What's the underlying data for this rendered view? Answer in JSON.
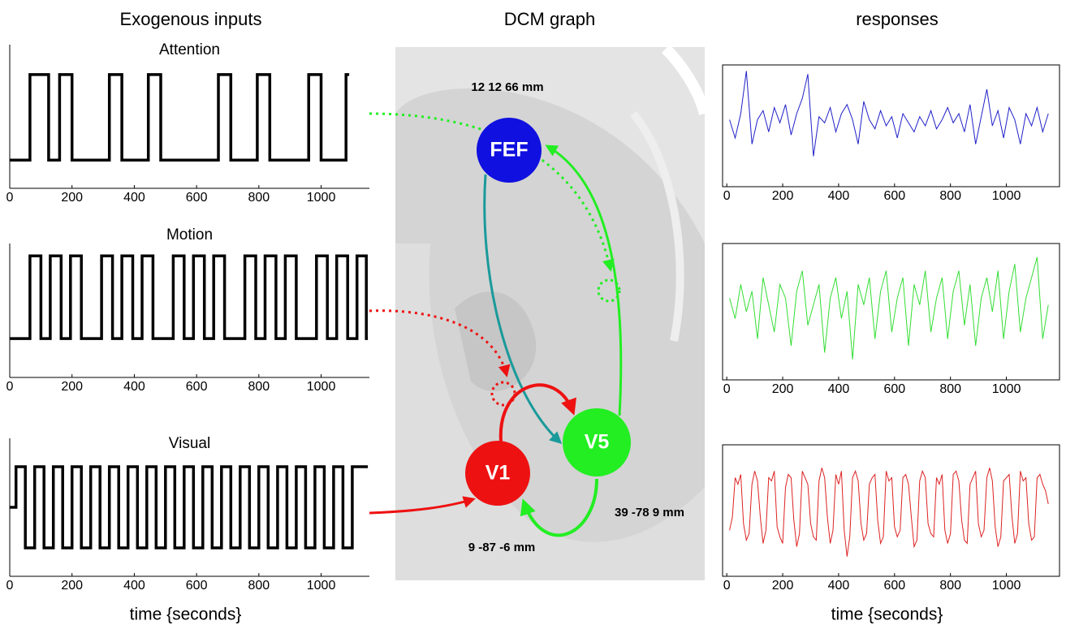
{
  "columns": {
    "left": "Exogenous inputs",
    "middle": "DCM graph",
    "right": "responses"
  },
  "graph": {
    "nodes": [
      {
        "label": "FEF",
        "coords": "12 12 66 mm",
        "color": "#1010e0"
      },
      {
        "label": "V5",
        "coords": "39 -78 9 mm",
        "color": "#22ee22"
      },
      {
        "label": "V1",
        "coords": "9  -87 -6 mm",
        "color": "#ee1111"
      }
    ]
  },
  "chart_data": [
    {
      "type": "line",
      "title": "Attention",
      "color": "#000000",
      "x": [
        0,
        65,
        65,
        125,
        125,
        160,
        160,
        200,
        200,
        320,
        320,
        360,
        360,
        445,
        445,
        485,
        485,
        670,
        670,
        710,
        710,
        795,
        795,
        835,
        835,
        960,
        960,
        1000,
        1000,
        1080,
        1080,
        1090
      ],
      "values": [
        0,
        0,
        1,
        1,
        0,
        0,
        1,
        1,
        0,
        0,
        1,
        1,
        0,
        0,
        1,
        1,
        0,
        0,
        1,
        1,
        0,
        0,
        1,
        1,
        0,
        0,
        1,
        1,
        0,
        0,
        1,
        1
      ],
      "xlim": [
        0,
        1155
      ],
      "ylim": [
        -0.33,
        1.35
      ],
      "xticks": [
        0,
        200,
        400,
        600,
        800,
        1000
      ]
    },
    {
      "type": "line",
      "title": "Motion",
      "color": "#000000",
      "x": [
        0,
        65,
        65,
        100,
        100,
        130,
        130,
        165,
        165,
        195,
        195,
        230,
        230,
        295,
        295,
        330,
        330,
        360,
        360,
        395,
        395,
        425,
        425,
        460,
        460,
        525,
        525,
        560,
        560,
        590,
        590,
        625,
        625,
        655,
        655,
        690,
        690,
        755,
        755,
        790,
        790,
        820,
        820,
        855,
        855,
        885,
        885,
        920,
        920,
        985,
        985,
        1020,
        1020,
        1050,
        1050,
        1085,
        1085,
        1115,
        1115,
        1145,
        1145,
        1150
      ],
      "values": [
        0,
        0,
        1,
        1,
        0,
        0,
        1,
        1,
        0,
        0,
        1,
        1,
        0,
        0,
        1,
        1,
        0,
        0,
        1,
        1,
        0,
        0,
        1,
        1,
        0,
        0,
        1,
        1,
        0,
        0,
        1,
        1,
        0,
        0,
        1,
        1,
        0,
        0,
        1,
        1,
        0,
        0,
        1,
        1,
        0,
        0,
        1,
        1,
        0,
        0,
        1,
        1,
        0,
        0,
        1,
        1,
        0,
        0,
        1,
        1,
        0,
        0
      ],
      "xlim": [
        0,
        1155
      ],
      "ylim": [
        -0.47,
        1.15
      ],
      "xticks": [
        0,
        200,
        400,
        600,
        800,
        1000
      ]
    },
    {
      "type": "line",
      "title": "Visual",
      "color": "#000000",
      "x_label": "time {seconds}",
      "x": [
        0,
        20,
        20,
        50,
        50,
        80,
        80,
        110,
        110,
        140,
        140,
        170,
        170,
        200,
        200,
        230,
        230,
        260,
        260,
        290,
        290,
        320,
        320,
        350,
        350,
        380,
        380,
        410,
        410,
        440,
        440,
        470,
        470,
        500,
        500,
        530,
        530,
        560,
        560,
        590,
        590,
        620,
        620,
        650,
        650,
        680,
        680,
        710,
        710,
        740,
        740,
        770,
        770,
        800,
        800,
        830,
        830,
        860,
        860,
        890,
        890,
        920,
        920,
        950,
        950,
        980,
        980,
        1010,
        1010,
        1040,
        1040,
        1070,
        1070,
        1100,
        1100,
        1150
      ],
      "values": [
        0.5,
        0.5,
        1,
        1,
        0,
        0,
        1,
        1,
        0,
        0,
        1,
        1,
        0,
        0,
        1,
        1,
        0,
        0,
        1,
        1,
        0,
        0,
        1,
        1,
        0,
        0,
        1,
        1,
        0,
        0,
        1,
        1,
        0,
        0,
        1,
        1,
        0,
        0,
        1,
        1,
        0,
        0,
        1,
        1,
        0,
        0,
        1,
        1,
        0,
        0,
        1,
        1,
        0,
        0,
        1,
        1,
        0,
        0,
        1,
        1,
        0,
        0,
        1,
        1,
        0,
        0,
        1,
        1,
        0,
        0,
        1,
        1,
        0,
        0,
        1,
        1
      ],
      "xlim": [
        0,
        1155
      ],
      "ylim": [
        -0.35,
        1.35
      ],
      "xticks": [
        0,
        200,
        400,
        600,
        800,
        1000
      ]
    },
    {
      "type": "line",
      "color": "#2020c8",
      "x": [
        10,
        30,
        50,
        70,
        90,
        110,
        130,
        150,
        170,
        190,
        210,
        230,
        250,
        270,
        290,
        310,
        330,
        350,
        370,
        390,
        410,
        430,
        450,
        470,
        490,
        510,
        530,
        550,
        570,
        590,
        610,
        630,
        650,
        670,
        690,
        710,
        730,
        750,
        770,
        790,
        810,
        830,
        850,
        870,
        890,
        910,
        930,
        950,
        970,
        990,
        1010,
        1030,
        1050,
        1070,
        1090,
        1110,
        1130,
        1150
      ],
      "values": [
        0.1,
        -0.2,
        0.2,
        0.9,
        -0.3,
        0.1,
        0.25,
        -0.1,
        0.3,
        0.05,
        0.35,
        -0.15,
        0.2,
        0.45,
        0.85,
        -0.5,
        0.15,
        0.05,
        0.3,
        -0.1,
        0.2,
        0.35,
        0.1,
        -0.3,
        0.4,
        0.1,
        -0.05,
        0.25,
        0.0,
        0.15,
        -0.2,
        0.2,
        0.05,
        -0.1,
        0.15,
        0.0,
        0.25,
        -0.05,
        0.1,
        0.3,
        0.05,
        0.2,
        -0.1,
        0.35,
        -0.3,
        0.15,
        0.6,
        0.0,
        0.25,
        -0.2,
        0.3,
        0.1,
        -0.3,
        0.2,
        0.0,
        0.3,
        -0.1,
        0.2
      ],
      "xlim": [
        -15,
        1190
      ],
      "ylim": [
        -1,
        1
      ],
      "xticks": [
        0,
        200,
        400,
        600,
        800,
        1000
      ]
    },
    {
      "type": "line",
      "color": "#33dd33",
      "x": [
        10,
        30,
        50,
        70,
        90,
        110,
        130,
        150,
        170,
        190,
        210,
        230,
        250,
        270,
        290,
        310,
        330,
        350,
        370,
        390,
        410,
        430,
        450,
        470,
        490,
        510,
        530,
        550,
        570,
        590,
        610,
        630,
        650,
        670,
        690,
        710,
        730,
        750,
        770,
        790,
        810,
        830,
        850,
        870,
        890,
        910,
        930,
        950,
        970,
        990,
        1010,
        1030,
        1050,
        1070,
        1090,
        1110,
        1130,
        1150
      ],
      "values": [
        0.2,
        -0.1,
        0.4,
        0.0,
        0.3,
        -0.4,
        0.5,
        0.1,
        -0.3,
        0.4,
        0.2,
        -0.5,
        0.3,
        0.6,
        -0.2,
        0.1,
        0.4,
        -0.6,
        0.2,
        0.5,
        -0.1,
        0.3,
        -0.7,
        0.4,
        0.1,
        0.5,
        -0.4,
        0.3,
        0.6,
        -0.3,
        0.2,
        0.5,
        -0.5,
        0.4,
        0.1,
        0.6,
        -0.3,
        0.2,
        0.5,
        -0.4,
        0.3,
        0.6,
        -0.2,
        0.4,
        -0.5,
        0.2,
        0.5,
        0.0,
        0.6,
        -0.4,
        0.3,
        0.7,
        -0.3,
        0.2,
        0.5,
        0.8,
        -0.4,
        0.1
      ],
      "xlim": [
        -15,
        1190
      ],
      "ylim": [
        -1,
        1
      ],
      "xticks": [
        0,
        200,
        400,
        600,
        800,
        1000
      ]
    },
    {
      "type": "line",
      "color": "#dd2222",
      "x_label": "time {seconds}",
      "x": [
        10,
        20,
        30,
        40,
        50,
        60,
        70,
        80,
        90,
        100,
        110,
        120,
        130,
        140,
        150,
        160,
        170,
        180,
        190,
        200,
        210,
        220,
        230,
        240,
        250,
        260,
        270,
        280,
        290,
        300,
        310,
        320,
        330,
        340,
        350,
        360,
        370,
        380,
        390,
        400,
        410,
        420,
        430,
        440,
        450,
        460,
        470,
        480,
        490,
        500,
        510,
        520,
        530,
        540,
        550,
        560,
        570,
        580,
        590,
        600,
        610,
        620,
        630,
        640,
        650,
        660,
        670,
        680,
        690,
        700,
        710,
        720,
        730,
        740,
        750,
        760,
        770,
        780,
        790,
        800,
        810,
        820,
        830,
        840,
        850,
        860,
        870,
        880,
        890,
        900,
        910,
        920,
        930,
        940,
        950,
        960,
        970,
        980,
        990,
        1000,
        1010,
        1020,
        1030,
        1040,
        1050,
        1060,
        1070,
        1080,
        1090,
        1100,
        1110,
        1120,
        1130,
        1140,
        1150
      ],
      "values": [
        -0.3,
        -0.1,
        0.5,
        0.4,
        0.55,
        -0.2,
        -0.45,
        -0.35,
        0.4,
        0.6,
        0.45,
        -0.1,
        -0.5,
        -0.3,
        0.5,
        0.45,
        0.6,
        -0.25,
        -0.4,
        -0.5,
        0.35,
        0.55,
        0.5,
        -0.15,
        -0.55,
        -0.35,
        0.6,
        0.5,
        0.4,
        -0.2,
        -0.4,
        -0.45,
        0.45,
        0.65,
        0.5,
        -0.1,
        -0.5,
        -0.3,
        0.55,
        0.4,
        0.6,
        -0.3,
        -0.7,
        -0.4,
        0.5,
        0.6,
        0.45,
        -0.2,
        -0.45,
        -0.35,
        0.4,
        0.5,
        0.55,
        -0.15,
        -0.5,
        -0.4,
        0.6,
        0.45,
        0.5,
        -0.25,
        -0.4,
        -0.3,
        0.5,
        0.55,
        0.4,
        -0.1,
        -0.55,
        -0.45,
        0.45,
        0.6,
        0.5,
        -0.2,
        -0.35,
        -0.4,
        0.5,
        0.4,
        0.55,
        -0.3,
        -0.5,
        -0.35,
        0.55,
        0.6,
        0.45,
        -0.15,
        -0.45,
        -0.5,
        0.4,
        0.5,
        0.6,
        -0.2,
        -0.4,
        -0.3,
        0.5,
        0.65,
        0.45,
        -0.25,
        -0.55,
        -0.4,
        0.45,
        0.5,
        0.55,
        -0.1,
        -0.5,
        -0.35,
        0.6,
        0.45,
        0.5,
        -0.2,
        -0.45,
        -0.4,
        0.5,
        0.55,
        0.4,
        0.3,
        0.1
      ],
      "xlim": [
        -15,
        1190
      ],
      "ylim": [
        -1,
        1
      ],
      "xticks": [
        0,
        200,
        400,
        600,
        800,
        1000
      ]
    }
  ]
}
